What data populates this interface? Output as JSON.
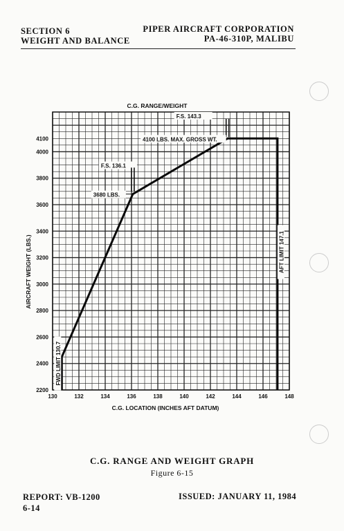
{
  "header": {
    "section_line1": "SECTION 6",
    "section_line2": "WEIGHT AND BALANCE",
    "company_line1": "PIPER AIRCRAFT CORPORATION",
    "company_line2": "PA-46-310P, MALIBU"
  },
  "caption": {
    "title": "C.G. RANGE AND WEIGHT GRAPH",
    "figure": "Figure 6-15"
  },
  "footer": {
    "report": "REPORT: VB-1200",
    "page": "6-14",
    "issued": "ISSUED: JANUARY 11, 1984"
  },
  "chart_data": {
    "type": "line",
    "title": "C.G. RANGE/WEIGHT",
    "xlabel": "C.G. LOCATION (INCHES AFT DATUM)",
    "ylabel": "AIRCRAFT WEIGHT (LBS.)",
    "xlim": [
      130,
      148
    ],
    "ylim": [
      2200,
      4150
    ],
    "x_ticks": [
      "130",
      "132",
      "134",
      "136",
      "138",
      "140",
      "142",
      "144",
      "146",
      "148"
    ],
    "y_ticks": [
      "2200",
      "2400",
      "2600",
      "2800",
      "3000",
      "3200",
      "3400",
      "3600",
      "3800",
      "4000",
      "4100"
    ],
    "grid": true,
    "series": [
      {
        "x": [
          130.7,
          130.7,
          136.1,
          143.3,
          147.1,
          147.1
        ],
        "y": [
          2200,
          2450,
          3680,
          4100,
          4100,
          2200
        ]
      }
    ],
    "annotations": {
      "fs_143": "F.S. 143.3",
      "max_gross": "4100 LBS. MAX. GROSS WT.",
      "fs_136": "F.S. 136.1",
      "lbs_3680": "3680 LBS.",
      "fwd_limit": "FWD LIMIT 130.7",
      "aft_limit": "AFT LIMIT 147.1"
    }
  }
}
